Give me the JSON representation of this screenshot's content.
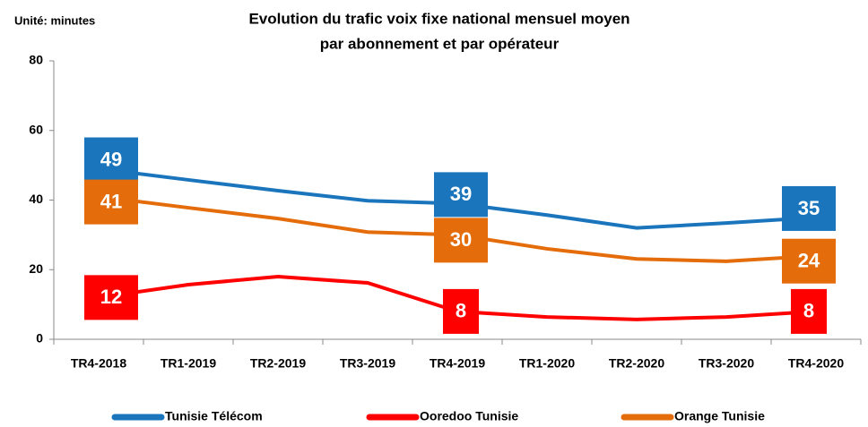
{
  "chart_data": {
    "type": "line",
    "title": [
      "Evolution du trafic voix fixe national mensuel moyen",
      "par abonnement et par opérateur"
    ],
    "unit_label": "Unité: minutes",
    "categories": [
      "TR4-2018",
      "TR1-2019",
      "TR2-2019",
      "TR3-2019",
      "TR4-2019",
      "TR1-2020",
      "TR2-2020",
      "TR3-2020",
      "TR4-2020"
    ],
    "series": [
      {
        "name": "Tunisie Télécom",
        "color": "#1a75bc",
        "values": [
          49,
          45.8,
          42.7,
          39.8,
          39,
          35.7,
          32,
          33.4,
          35
        ],
        "value_labels": [
          "49",
          null,
          null,
          null,
          "39",
          null,
          null,
          null,
          "35"
        ]
      },
      {
        "name": "Ooredoo Tunisie",
        "color": "#ff0000",
        "values": [
          12,
          15.7,
          18,
          16.2,
          8,
          6.4,
          5.7,
          6.4,
          8
        ],
        "value_labels": [
          "12",
          null,
          null,
          null,
          "8",
          null,
          null,
          null,
          "8"
        ]
      },
      {
        "name": "Orange Tunisie",
        "color": "#e46c0a",
        "values": [
          41,
          37.8,
          34.7,
          30.8,
          30,
          26,
          23.1,
          22.4,
          24
        ],
        "value_labels": [
          "41",
          null,
          null,
          null,
          "30",
          null,
          null,
          null,
          "24"
        ]
      }
    ],
    "ylim": [
      0,
      80
    ],
    "yticks": [
      0,
      20,
      40,
      60,
      80
    ],
    "grid": false,
    "legend": "bottom"
  }
}
